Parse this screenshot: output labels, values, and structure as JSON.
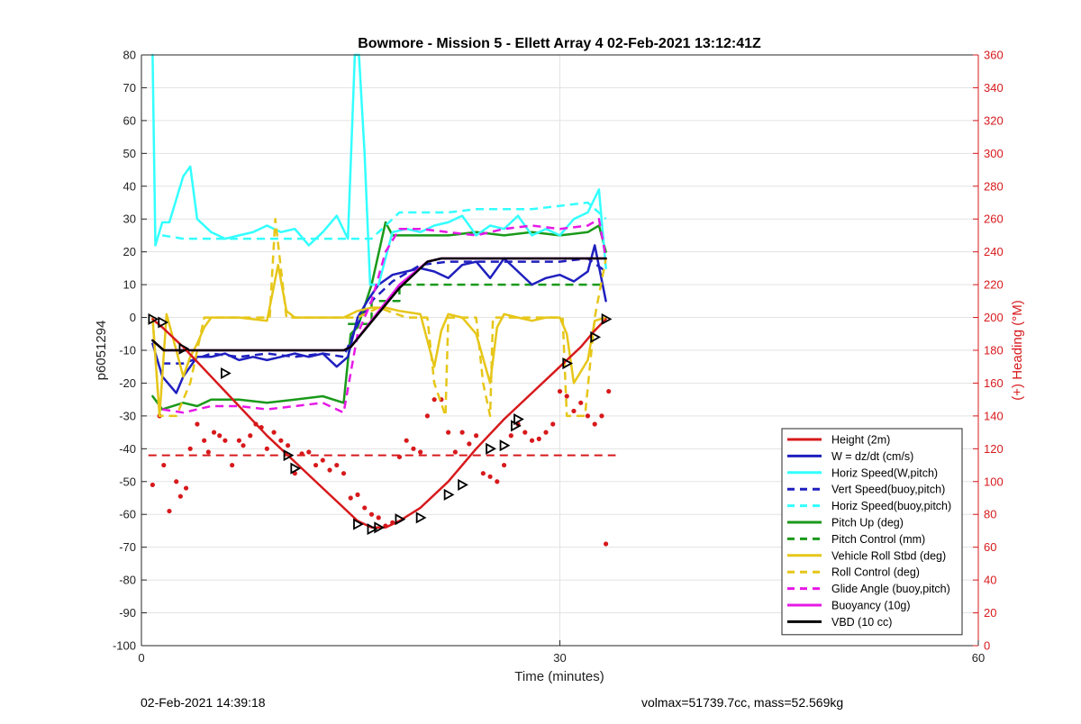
{
  "chart_data": {
    "type": "line",
    "title": "Bowmore - Mission 5 - Ellett Array 4 02-Feb-2021 13:12:41Z",
    "xlabel": "Time (minutes)",
    "ylabel": "p6051294",
    "y2label": "(+) Heading (°M)",
    "xlim": [
      0,
      60
    ],
    "ylim": [
      -100,
      80
    ],
    "y2lim": [
      0,
      360
    ],
    "xticks": [
      0,
      30,
      60
    ],
    "yticks": [
      -100,
      -90,
      -80,
      -70,
      -60,
      -50,
      -40,
      -30,
      -20,
      -10,
      0,
      10,
      20,
      30,
      40,
      50,
      60,
      70,
      80
    ],
    "y2ticks": [
      0,
      20,
      40,
      60,
      80,
      100,
      120,
      140,
      160,
      180,
      200,
      220,
      240,
      260,
      280,
      300,
      320,
      340,
      360
    ],
    "grid": true,
    "legend_position": "bottom-right",
    "series": [
      {
        "name": "Height (2m)",
        "color": "#d7191c",
        "style": "solid",
        "width": 2.5,
        "x": [
          0.8,
          1.5,
          3,
          5,
          7,
          9,
          11,
          13,
          14.5,
          15.5,
          16.5,
          17.5,
          18.5,
          20,
          22,
          24,
          26,
          28,
          30,
          31.5,
          32.5,
          33.3
        ],
        "y": [
          -0.5,
          -3,
          -9,
          -18,
          -27,
          -36,
          -44,
          -52,
          -58,
          -62,
          -64,
          -64,
          -62,
          -58,
          -50,
          -40,
          -31,
          -23,
          -15,
          -9,
          -4,
          -0.5
        ]
      },
      {
        "name": "W = dz/dt (cm/s)",
        "color": "#1f1fbf",
        "style": "solid",
        "width": 2.5,
        "x": [
          0.8,
          1.5,
          2.5,
          3,
          4,
          5,
          6,
          7,
          8,
          9,
          10,
          11,
          12,
          13,
          14,
          14.8,
          15.5,
          16.2,
          17,
          18,
          19,
          20,
          21,
          22,
          23,
          24,
          25,
          26,
          27,
          28,
          29,
          30,
          31,
          32,
          32.5,
          33.3
        ],
        "y": [
          -8,
          -18,
          -23,
          -18,
          -12,
          -12,
          -11,
          -13,
          -12,
          -13,
          -12,
          -11,
          -12,
          -11,
          -15,
          -12,
          0,
          5,
          10,
          13,
          14,
          15,
          14,
          12,
          16,
          17,
          12,
          18,
          14,
          10,
          12,
          13,
          11,
          14,
          22,
          5
        ]
      },
      {
        "name": "Horiz Speed(W,pitch)",
        "color": "#33ffff",
        "style": "solid",
        "width": 2.5,
        "x": [
          0.8,
          1.0,
          1.5,
          2.0,
          3.0,
          3.5,
          4.0,
          5.0,
          6.0,
          7.0,
          8.0,
          9.0,
          10.0,
          11.0,
          12.0,
          13.0,
          14.0,
          14.8,
          15.3,
          15.6,
          16.0,
          16.4,
          17.0,
          18.0,
          19.0,
          20.0,
          21.0,
          22.0,
          23.0,
          24.0,
          25.0,
          26.0,
          27.0,
          28.0,
          29.0,
          30.0,
          31.0,
          32.0,
          32.8,
          33.3
        ],
        "y": [
          80,
          22,
          29,
          29,
          43,
          46,
          30,
          26,
          24,
          25,
          26,
          28,
          26,
          27,
          22,
          26,
          31,
          24,
          80,
          80,
          50,
          10,
          10,
          26,
          27,
          26,
          28,
          29,
          31,
          25,
          28,
          27,
          31,
          25,
          27,
          25,
          30,
          32,
          39,
          15
        ]
      },
      {
        "name": "Vert Speed(buoy,pitch)",
        "color": "#1f1fbf",
        "style": "dashed",
        "width": 2.5,
        "x": [
          1.5,
          3,
          5,
          7,
          9,
          11,
          13,
          14.5,
          15.5,
          16.5,
          18,
          20,
          22,
          24,
          26,
          28,
          30,
          32,
          33.3
        ],
        "y": [
          -14,
          -14,
          -11,
          -12,
          -11,
          -12,
          -11,
          -12,
          -2,
          5,
          11,
          16,
          17,
          17,
          17,
          17,
          17,
          18,
          14
        ]
      },
      {
        "name": "Horiz Speed(buoy,pitch)",
        "color": "#33ffff",
        "style": "dashed",
        "width": 2.5,
        "x": [
          1.5,
          3,
          5,
          7,
          9,
          11,
          13,
          14.5,
          15.5,
          16.5,
          17.5,
          18.5,
          20,
          22,
          24,
          26,
          28,
          30,
          32,
          33.3
        ],
        "y": [
          25,
          24,
          24,
          24,
          24,
          24,
          24,
          24,
          24,
          24,
          28,
          32,
          32,
          32,
          33,
          33,
          33,
          34,
          35,
          30
        ]
      },
      {
        "name": "Pitch Up (deg)",
        "color": "#1a9a1a",
        "style": "solid",
        "width": 2.5,
        "x": [
          0.8,
          1.5,
          3,
          4,
          5,
          7,
          9,
          11,
          13,
          14.5,
          15,
          15.5,
          16.5,
          17.5,
          18,
          19,
          20,
          22,
          24,
          26,
          28,
          30,
          32,
          32.8,
          33.3
        ],
        "y": [
          -24,
          -28,
          -26,
          -27,
          -25,
          -25,
          -26,
          -25,
          -24,
          -26,
          -5,
          -3,
          10,
          29,
          25,
          25,
          25,
          25,
          26,
          25,
          26,
          25,
          26,
          28,
          20
        ]
      },
      {
        "name": "Pitch Control (mm)",
        "color": "#1a9a1a",
        "style": "dashed",
        "width": 2.5,
        "x": [
          14.8,
          16.5,
          16.5,
          18.5,
          18.5,
          33.3
        ],
        "y": [
          -2,
          -2,
          5,
          5,
          10,
          10
        ]
      },
      {
        "name": "Vehicle Roll Stbd (deg)",
        "color": "#e6c619",
        "style": "solid",
        "width": 2.5,
        "x": [
          0.8,
          1.3,
          1.8,
          2.5,
          3.0,
          3.5,
          4.0,
          4.5,
          5,
          7,
          9,
          9.8,
          10.4,
          11,
          13,
          14.5,
          15.5,
          16.5,
          17.5,
          18.5,
          20,
          21,
          21.5,
          22,
          23,
          24,
          25,
          25.5,
          26,
          27,
          28,
          29,
          30,
          30.5,
          31,
          32,
          32.5,
          33.3
        ],
        "y": [
          0,
          -30,
          1,
          -10,
          -18,
          -12,
          -8,
          -3,
          0,
          0,
          -1,
          16,
          2,
          0,
          0,
          0,
          2,
          3,
          3,
          2,
          1,
          -15,
          -4,
          1,
          0,
          -5,
          -20,
          -3,
          1,
          0,
          -1,
          0,
          0,
          -5,
          -20,
          -13,
          -1,
          0
        ]
      },
      {
        "name": "Roll Control (deg)",
        "color": "#e6c619",
        "style": "dashed",
        "width": 2.5,
        "x": [
          0.8,
          1.3,
          1.8,
          2.5,
          3.5,
          4.5,
          9.2,
          9.6,
          10.4,
          15.5,
          17,
          19,
          20.5,
          21,
          21.8,
          22,
          24,
          24.5,
          25,
          25.2,
          27,
          29,
          30.2,
          30.5,
          31,
          31.8,
          32.5,
          33.3
        ],
        "y": [
          0,
          -30,
          -30,
          -30,
          -20,
          0,
          0,
          30,
          0,
          0,
          3,
          0,
          0,
          -20,
          -30,
          0,
          0,
          -20,
          -30,
          0,
          0,
          0,
          0,
          -30,
          -30,
          -30,
          0,
          18
        ]
      },
      {
        "name": "Glide Angle (buoy,pitch)",
        "color": "#e619e6",
        "style": "dashed",
        "width": 2.5,
        "x": [
          1.5,
          3,
          5,
          7,
          9,
          11,
          13,
          14.5,
          15.5,
          16.5,
          17.5,
          18.5,
          20,
          22,
          24,
          26,
          28,
          30,
          32,
          32.8,
          33.3
        ],
        "y": [
          -28,
          -29,
          -27,
          -27,
          -28,
          -27,
          -26,
          -29,
          -5,
          5,
          20,
          27,
          27,
          26,
          25,
          27,
          28,
          27,
          28,
          30,
          18
        ]
      },
      {
        "name": "Buoyancy (10g)",
        "color": "#e619e6",
        "style": "solid",
        "width": 2.5,
        "x": [
          0.8,
          1.6,
          3,
          14.5,
          15.0,
          18.5,
          20.5,
          21.5,
          33.3
        ],
        "y": [
          -7,
          -10,
          -10,
          -10,
          -9,
          10,
          17,
          18,
          18
        ]
      },
      {
        "name": "VBD (10 cc)",
        "color": "#000000",
        "style": "solid",
        "width": 2.5,
        "x": [
          0.8,
          1.6,
          3,
          14.5,
          15.0,
          18.5,
          20.5,
          21.5,
          33.3
        ],
        "y": [
          -7,
          -10,
          -10,
          -10,
          -9,
          9,
          17,
          18,
          18
        ]
      }
    ],
    "threshold_line": {
      "color": "#d7191c",
      "style": "dashed",
      "y": -42,
      "x": [
        0.5,
        34
      ]
    },
    "heading_scatter": {
      "color": "#d7191c",
      "x": [
        0.8,
        1.3,
        1.6,
        2.0,
        2.5,
        2.8,
        3.2,
        3.5,
        4.0,
        4.5,
        4.8,
        5.2,
        5.6,
        6.0,
        6.5,
        7.0,
        7.3,
        7.8,
        8.2,
        8.6,
        9.0,
        9.5,
        10.0,
        10.5,
        11.0,
        11.5,
        12.0,
        12.5,
        13.0,
        13.5,
        14.0,
        14.5,
        15.0,
        15.5,
        16.0,
        16.5,
        17.0,
        17.5,
        18.0,
        18.5,
        19.0,
        19.5,
        20.0,
        20.5,
        21.0,
        21.5,
        22.0,
        22.5,
        23.0,
        23.5,
        24.0,
        24.5,
        25.0,
        25.5,
        26.0,
        26.5,
        27.0,
        27.5,
        28.0,
        28.5,
        29.0,
        29.5,
        30.0,
        30.5,
        31.0,
        31.5,
        32.0,
        32.5,
        33.0,
        33.3,
        33.5
      ],
      "y": [
        98,
        140,
        110,
        82,
        100,
        91,
        96,
        120,
        135,
        125,
        118,
        130,
        128,
        125,
        110,
        125,
        122,
        128,
        135,
        133,
        120,
        130,
        125,
        122,
        105,
        117,
        118,
        110,
        113,
        107,
        110,
        105,
        90,
        92,
        84,
        80,
        78,
        73,
        75,
        115,
        125,
        120,
        118,
        140,
        150,
        150,
        130,
        118,
        130,
        123,
        128,
        105,
        103,
        100,
        110,
        128,
        135,
        130,
        125,
        126,
        130,
        135,
        155,
        152,
        143,
        148,
        140,
        135,
        140,
        62,
        155
      ]
    },
    "markers": {
      "x": [
        0.8,
        1.5,
        3,
        6,
        10.5,
        11.0,
        15.5,
        16.5,
        17,
        18.5,
        20,
        22,
        23,
        25,
        26,
        26.8,
        27.0,
        30.5,
        32.5,
        33.3
      ],
      "y": [
        -0.5,
        -1.5,
        -9.5,
        -17,
        -42,
        -46,
        -63,
        -64.5,
        -64,
        -61.5,
        -61,
        -54,
        -51,
        -40,
        -39,
        -33,
        -31,
        -14,
        -6,
        -0.5
      ]
    }
  },
  "footer": {
    "left": "02-Feb-2021 14:39:18",
    "right": "volmax=51739.7cc, mass=52.569kg"
  }
}
